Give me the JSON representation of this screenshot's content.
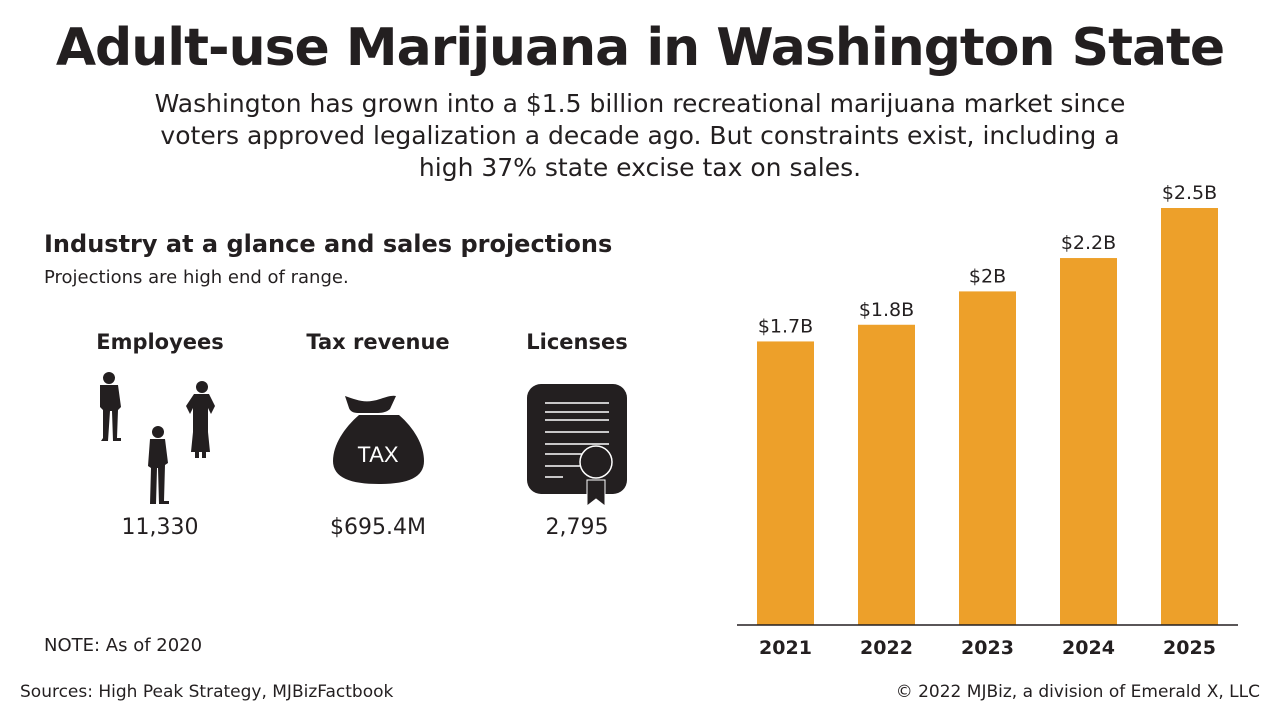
{
  "header": {
    "title": "Adult-use Marijuana in Washington State",
    "subtitle": "Washington has grown into a $1.5 billion recreational marijuana market since voters approved legalization a decade ago. But constraints exist, including a high 37% state excise tax on sales."
  },
  "section": {
    "title": "Industry at a glance and sales projections",
    "subtitle": "Projections are high end of range."
  },
  "stats": [
    {
      "label": "Employees",
      "value": "11,330",
      "icon": "people-silhouettes-icon"
    },
    {
      "label": "Tax revenue",
      "value": "$695.4M",
      "icon": "money-bag-icon",
      "icon_text": "TAX"
    },
    {
      "label": "Licenses",
      "value": "2,795",
      "icon": "certificate-icon"
    }
  ],
  "note": "NOTE: As of 2020",
  "footer": {
    "sources": "Sources: High Peak Strategy, MJBizFactbook",
    "copyright": "© 2022 MJBiz, a division of Emerald X, LLC"
  },
  "chart_data": {
    "type": "bar",
    "categories": [
      "2021",
      "2022",
      "2023",
      "2024",
      "2025"
    ],
    "values": [
      1.7,
      1.8,
      2.0,
      2.2,
      2.5
    ],
    "data_labels": [
      "$1.7B",
      "$1.8B",
      "$2B",
      "$2.2B",
      "$2.5B"
    ],
    "unit": "billion USD",
    "ylim": [
      0,
      2.5
    ],
    "grid": false,
    "bar_color": "#EDA02A",
    "axis_color": "#231f20"
  }
}
